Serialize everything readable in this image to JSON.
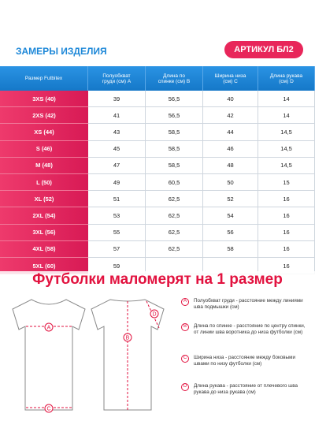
{
  "header": {
    "title": "ЗАМЕРЫ ИЗДЕЛИЯ",
    "article": "АРТИКУЛ БЛ2"
  },
  "table": {
    "columns": [
      "Размер Futbitex",
      "Полуобхват груди (см) A",
      "Длина по спинке (см) B",
      "Ширина низа (см) C",
      "Длина рукава (см) D"
    ],
    "rows": [
      [
        "3XS (40)",
        "39",
        "56,5",
        "40",
        "14"
      ],
      [
        "2XS (42)",
        "41",
        "56,5",
        "42",
        "14"
      ],
      [
        "XS (44)",
        "43",
        "58,5",
        "44",
        "14,5"
      ],
      [
        "S (46)",
        "45",
        "58,5",
        "46",
        "14,5"
      ],
      [
        "M (48)",
        "47",
        "58,5",
        "48",
        "14,5"
      ],
      [
        "L (50)",
        "49",
        "60,5",
        "50",
        "15"
      ],
      [
        "XL (52)",
        "51",
        "62,5",
        "52",
        "16"
      ],
      [
        "2XL (54)",
        "53",
        "62,5",
        "54",
        "16"
      ],
      [
        "3XL (56)",
        "55",
        "62,5",
        "56",
        "16"
      ],
      [
        "4XL (58)",
        "57",
        "62,5",
        "58",
        "16"
      ],
      [
        "5XL (60)",
        "59",
        null,
        null,
        "16"
      ]
    ]
  },
  "banner": "Футболки маломерят на 1 размер",
  "legend": [
    {
      "letter": "A",
      "text": "Полуобхват груди - расстояние между линиями шва подмышки (см)"
    },
    {
      "letter": "B",
      "text": "Длина по спинке - расстояние по центру спинки, от линии шва воротника до низа футболки (см)"
    },
    {
      "letter": "C",
      "text": "Ширина низа - расстояние между боковыми швами по низу футболки (см)"
    },
    {
      "letter": "D",
      "text": "Длина рукава - расстояние от плечевого шва рукава до низа рукава (см)"
    }
  ],
  "diagram_letters": [
    "A",
    "B",
    "C",
    "D"
  ]
}
